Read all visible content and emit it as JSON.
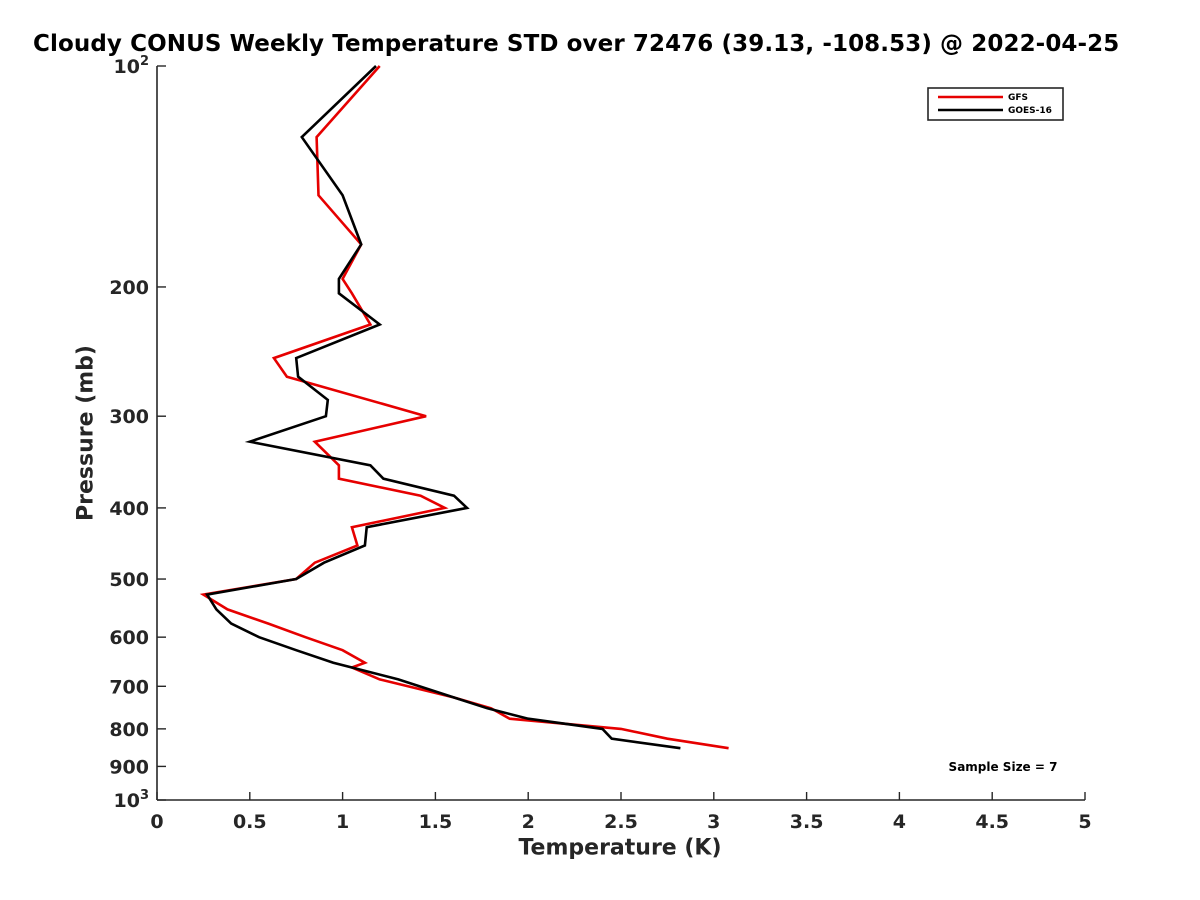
{
  "chart_data": {
    "type": "line",
    "title": "Cloudy CONUS Weekly Temperature STD over 72476 (39.13, -108.53) @ 2022-04-25",
    "xlabel": "Temperature (K)",
    "ylabel": "Pressure (mb)",
    "xlim": [
      0,
      5
    ],
    "ylim": [
      100,
      1000
    ],
    "y_scale": "log",
    "y_reversed": true,
    "grid": false,
    "legend_position": "top-right",
    "annotation": "Sample Size = 7",
    "x_ticks": [
      0,
      0.5,
      1,
      1.5,
      2,
      2.5,
      3,
      3.5,
      4,
      4.5,
      5
    ],
    "x_tick_labels": [
      "0",
      "0.5",
      "1",
      "1.5",
      "2",
      "2.5",
      "3",
      "3.5",
      "4",
      "4.5",
      "5"
    ],
    "y_ticks": [
      100,
      200,
      300,
      400,
      500,
      600,
      700,
      800,
      900,
      1000
    ],
    "y_tick_labels": [
      {
        "base": "10",
        "sup": "2"
      },
      {
        "base": "200",
        "sup": ""
      },
      {
        "base": "300",
        "sup": ""
      },
      {
        "base": "400",
        "sup": ""
      },
      {
        "base": "500",
        "sup": ""
      },
      {
        "base": "600",
        "sup": ""
      },
      {
        "base": "700",
        "sup": ""
      },
      {
        "base": "800",
        "sup": ""
      },
      {
        "base": "900",
        "sup": ""
      },
      {
        "base": "10",
        "sup": "3"
      }
    ],
    "series": [
      {
        "name": "GFS",
        "color": "#e60000",
        "points": [
          [
            1.2,
            100
          ],
          [
            0.86,
            125
          ],
          [
            0.87,
            150
          ],
          [
            1.1,
            175
          ],
          [
            1.0,
            195
          ],
          [
            1.05,
            204
          ],
          [
            1.15,
            225
          ],
          [
            0.63,
            250
          ],
          [
            0.7,
            265
          ],
          [
            1.45,
            300
          ],
          [
            0.85,
            325
          ],
          [
            0.98,
            350
          ],
          [
            0.98,
            365
          ],
          [
            1.42,
            385
          ],
          [
            1.55,
            400
          ],
          [
            1.05,
            425
          ],
          [
            1.08,
            450
          ],
          [
            0.85,
            475
          ],
          [
            0.75,
            500
          ],
          [
            0.25,
            525
          ],
          [
            0.38,
            550
          ],
          [
            0.6,
            575
          ],
          [
            0.8,
            600
          ],
          [
            1.0,
            625
          ],
          [
            1.12,
            650
          ],
          [
            1.05,
            660
          ],
          [
            1.2,
            685
          ],
          [
            1.6,
            725
          ],
          [
            1.8,
            750
          ],
          [
            1.9,
            775
          ],
          [
            2.5,
            800
          ],
          [
            2.75,
            825
          ],
          [
            3.08,
            850
          ]
        ]
      },
      {
        "name": "GOES-16",
        "color": "#000000",
        "points": [
          [
            1.18,
            100
          ],
          [
            0.78,
            125
          ],
          [
            1.0,
            150
          ],
          [
            1.1,
            175
          ],
          [
            0.98,
            195
          ],
          [
            0.98,
            204
          ],
          [
            1.2,
            225
          ],
          [
            0.75,
            250
          ],
          [
            0.76,
            265
          ],
          [
            0.92,
            285
          ],
          [
            0.91,
            300
          ],
          [
            0.5,
            325
          ],
          [
            1.15,
            350
          ],
          [
            1.22,
            365
          ],
          [
            1.6,
            385
          ],
          [
            1.67,
            400
          ],
          [
            1.13,
            425
          ],
          [
            1.12,
            450
          ],
          [
            0.9,
            475
          ],
          [
            0.75,
            500
          ],
          [
            0.27,
            525
          ],
          [
            0.32,
            550
          ],
          [
            0.4,
            575
          ],
          [
            0.55,
            600
          ],
          [
            0.75,
            625
          ],
          [
            0.95,
            650
          ],
          [
            1.05,
            660
          ],
          [
            1.3,
            685
          ],
          [
            1.6,
            725
          ],
          [
            1.78,
            750
          ],
          [
            2.0,
            775
          ],
          [
            2.4,
            800
          ],
          [
            2.45,
            825
          ],
          [
            2.82,
            850
          ]
        ]
      }
    ]
  }
}
